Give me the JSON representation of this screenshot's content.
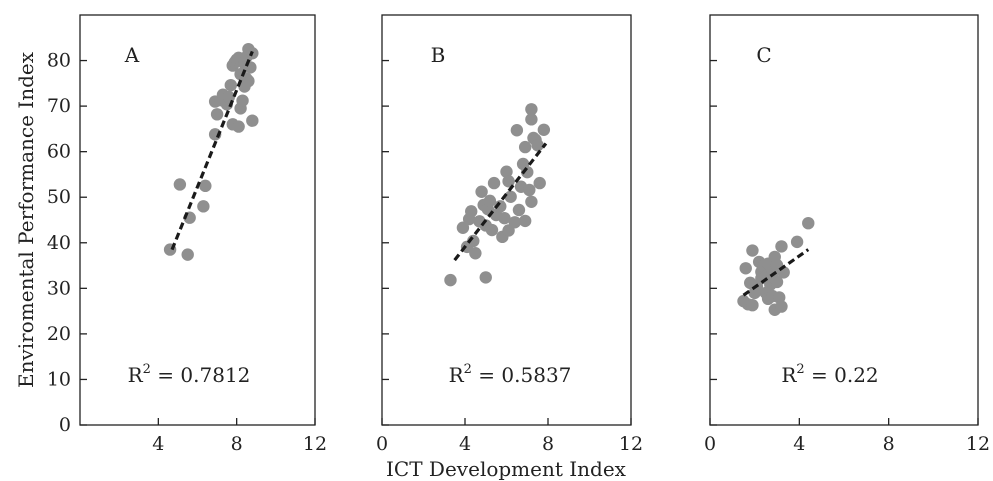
{
  "colors": {
    "point": "#8f8f8f",
    "trend": "#1a1a1a",
    "axis": "#222222"
  },
  "chart_data": {
    "type": "scatter",
    "xlabel": "ICT Development Index",
    "ylabel": "Enviromental Performance Index",
    "ylim": [
      0,
      90
    ],
    "yticks": [
      0,
      10,
      20,
      30,
      40,
      50,
      60,
      70,
      80
    ],
    "grid": false,
    "panels": [
      {
        "label": "A",
        "r2_base": "R",
        "r2_sup": "2",
        "r2_value": " = 0.7812",
        "xlim": [
          0,
          12
        ],
        "xticks": [
          4,
          8,
          12
        ],
        "trend": [
          [
            4.7,
            38.5
          ],
          [
            8.8,
            82
          ]
        ],
        "points": [
          [
            4.6,
            38.5
          ],
          [
            5.1,
            52.8
          ],
          [
            5.5,
            37.4
          ],
          [
            5.6,
            45.5
          ],
          [
            6.3,
            48.0
          ],
          [
            6.4,
            52.5
          ],
          [
            6.9,
            63.8
          ],
          [
            6.9,
            71.0
          ],
          [
            7.0,
            68.2
          ],
          [
            7.2,
            71.3
          ],
          [
            7.3,
            72.5
          ],
          [
            7.5,
            70.4
          ],
          [
            7.6,
            72.0
          ],
          [
            7.7,
            74.6
          ],
          [
            7.8,
            66.0
          ],
          [
            7.8,
            78.9
          ],
          [
            7.9,
            79.6
          ],
          [
            8.0,
            80.2
          ],
          [
            8.1,
            80.6
          ],
          [
            8.1,
            65.5
          ],
          [
            8.2,
            77.0
          ],
          [
            8.2,
            69.5
          ],
          [
            8.3,
            71.2
          ],
          [
            8.4,
            79.3
          ],
          [
            8.4,
            74.3
          ],
          [
            8.5,
            76.0
          ],
          [
            8.5,
            80.8
          ],
          [
            8.6,
            82.5
          ],
          [
            8.6,
            75.5
          ],
          [
            8.7,
            78.5
          ],
          [
            8.8,
            81.6
          ],
          [
            8.8,
            66.8
          ]
        ]
      },
      {
        "label": "B",
        "r2_base": "R",
        "r2_sup": "2",
        "r2_value": " = 0.5837",
        "xlim": [
          0,
          12
        ],
        "xticks": [
          0,
          4,
          8,
          12
        ],
        "trend": [
          [
            3.5,
            36.2
          ],
          [
            7.9,
            61.8
          ]
        ],
        "points": [
          [
            3.3,
            31.8
          ],
          [
            3.9,
            43.3
          ],
          [
            4.1,
            39.1
          ],
          [
            4.2,
            45.2
          ],
          [
            4.3,
            46.9
          ],
          [
            4.4,
            40.4
          ],
          [
            4.5,
            37.7
          ],
          [
            4.7,
            44.7
          ],
          [
            4.8,
            51.2
          ],
          [
            4.9,
            48.3
          ],
          [
            5.0,
            32.4
          ],
          [
            5.0,
            43.8
          ],
          [
            5.1,
            47.4
          ],
          [
            5.2,
            49.2
          ],
          [
            5.3,
            42.8
          ],
          [
            5.4,
            53.1
          ],
          [
            5.5,
            46.1
          ],
          [
            5.7,
            48.0
          ],
          [
            5.8,
            41.3
          ],
          [
            5.9,
            45.4
          ],
          [
            6.0,
            55.6
          ],
          [
            6.1,
            53.5
          ],
          [
            6.1,
            42.7
          ],
          [
            6.2,
            50.1
          ],
          [
            6.4,
            44.5
          ],
          [
            6.5,
            64.7
          ],
          [
            6.6,
            47.2
          ],
          [
            6.7,
            52.3
          ],
          [
            6.8,
            57.3
          ],
          [
            6.9,
            44.8
          ],
          [
            6.9,
            61.0
          ],
          [
            7.0,
            55.5
          ],
          [
            7.1,
            51.6
          ],
          [
            7.2,
            67.1
          ],
          [
            7.2,
            49.0
          ],
          [
            7.2,
            69.3
          ],
          [
            7.3,
            63.0
          ],
          [
            7.4,
            62.6
          ],
          [
            7.5,
            61.4
          ],
          [
            7.6,
            53.1
          ],
          [
            7.8,
            64.8
          ]
        ]
      },
      {
        "label": "C",
        "r2_base": "R",
        "r2_sup": "2",
        "r2_value": " = 0.22",
        "xlim": [
          0,
          12
        ],
        "xticks": [
          0,
          4,
          8,
          12
        ],
        "trend": [
          [
            1.5,
            28.5
          ],
          [
            4.4,
            38.5
          ]
        ],
        "points": [
          [
            1.5,
            27.2
          ],
          [
            1.6,
            34.4
          ],
          [
            1.7,
            26.5
          ],
          [
            1.8,
            31.2
          ],
          [
            1.9,
            38.3
          ],
          [
            1.9,
            26.3
          ],
          [
            2.0,
            29.0
          ],
          [
            2.1,
            30.4
          ],
          [
            2.2,
            35.8
          ],
          [
            2.3,
            32.2
          ],
          [
            2.3,
            33.6
          ],
          [
            2.4,
            34.9
          ],
          [
            2.5,
            32.6
          ],
          [
            2.5,
            29.0
          ],
          [
            2.6,
            27.7
          ],
          [
            2.6,
            35.4
          ],
          [
            2.7,
            30.8
          ],
          [
            2.8,
            28.3
          ],
          [
            2.8,
            33.2
          ],
          [
            2.9,
            36.9
          ],
          [
            2.9,
            25.3
          ],
          [
            3.0,
            31.4
          ],
          [
            3.0,
            35.1
          ],
          [
            3.1,
            28.0
          ],
          [
            3.2,
            39.2
          ],
          [
            3.2,
            26.0
          ],
          [
            3.3,
            33.5
          ],
          [
            3.9,
            40.2
          ],
          [
            4.4,
            44.3
          ]
        ]
      }
    ]
  }
}
